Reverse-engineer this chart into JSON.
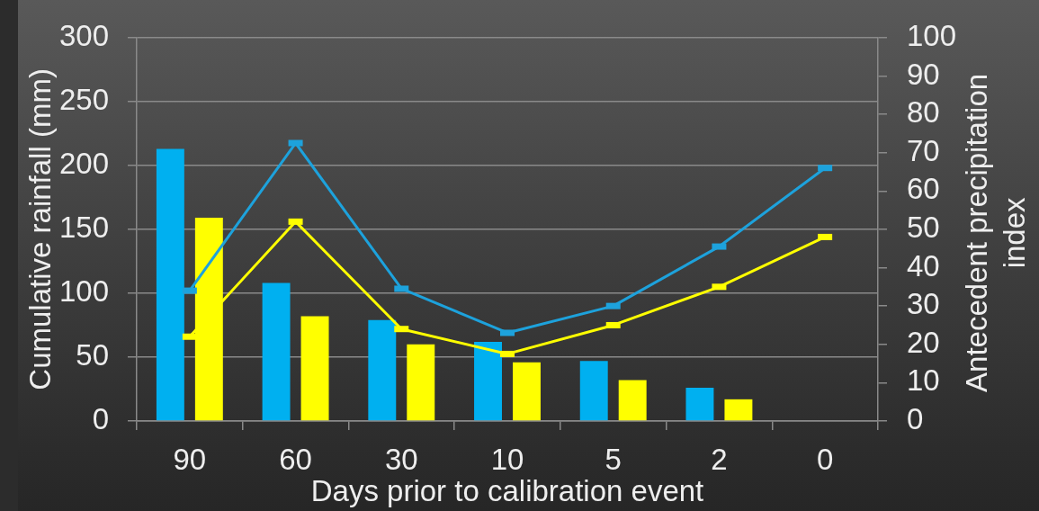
{
  "chart_data": {
    "type": "bar",
    "categories": [
      "90",
      "60",
      "30",
      "10",
      "5",
      "2",
      "0"
    ],
    "xlabel": "Days prior to calibration event",
    "ylabel": "Cumulative rainfall (mm)",
    "y2label": "Antecedent precipitation index",
    "ylim": [
      0,
      300
    ],
    "yticks": [
      0,
      50,
      100,
      150,
      200,
      250,
      300
    ],
    "y2lim": [
      0,
      100
    ],
    "y2ticks": [
      0,
      10,
      20,
      30,
      40,
      50,
      60,
      70,
      80,
      90,
      100
    ],
    "grid": "y",
    "marker": "square",
    "series": [
      {
        "color": "#00b0f0",
        "values": [
          213,
          108,
          79,
          62,
          47,
          26,
          null
        ]
      },
      {
        "color": "#ffff00",
        "values": [
          159,
          82,
          60,
          46,
          32,
          17,
          null
        ]
      },
      {
        "type": "line",
        "axis": "y2",
        "color": "#1da2dc",
        "values": [
          34,
          72.5,
          34.5,
          23,
          30,
          45.5,
          66
        ]
      },
      {
        "type": "line",
        "axis": "y2",
        "color": "#ffff00",
        "values": [
          22,
          52,
          24,
          17.5,
          25,
          35,
          48
        ]
      }
    ]
  }
}
